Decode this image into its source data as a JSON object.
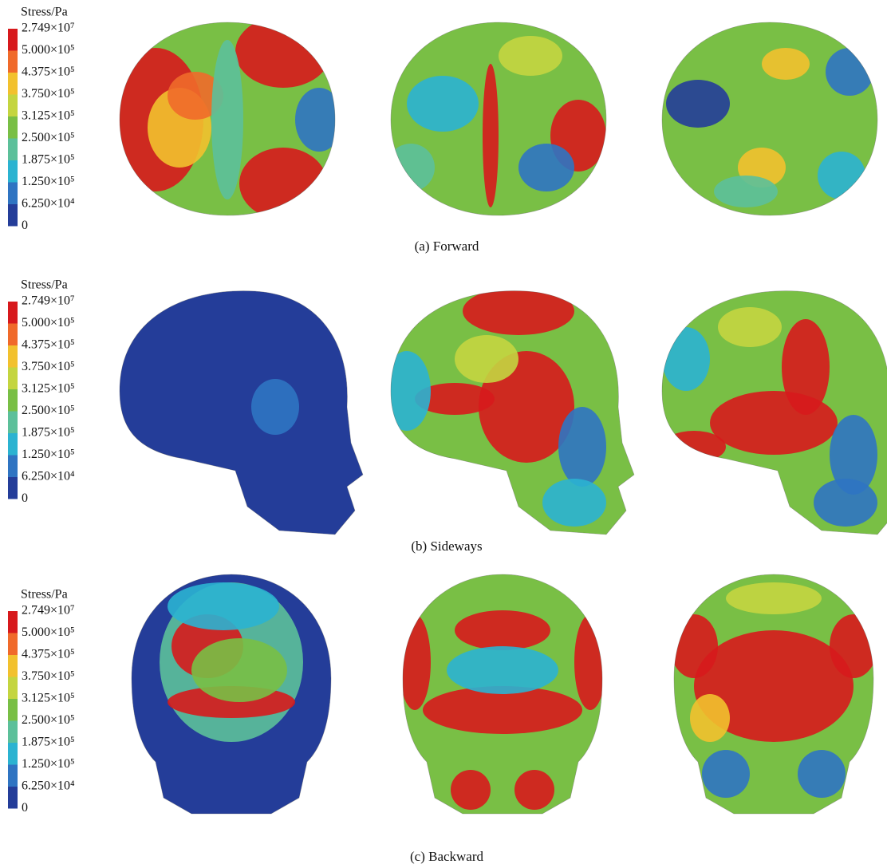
{
  "legend_colors": [
    "#d7191c",
    "#f06a2a",
    "#f2c12e",
    "#c4d540",
    "#79bf45",
    "#5cc09a",
    "#2bb3d1",
    "#2f74c2",
    "#243d99"
  ],
  "rows": [
    {
      "caption": "(a) Forward",
      "legend": {
        "title": "Stress/Pa",
        "labels": [
          "2.749×10⁷",
          "5.000×10⁵",
          "4.375×10⁵",
          "3.750×10⁵",
          "3.125×10⁵",
          "2.500×10⁵",
          "1.875×10⁵",
          "1.250×10⁵",
          "6.250×10⁴",
          "0"
        ]
      }
    },
    {
      "caption": "(b) Sideways",
      "legend": {
        "title": "Stress/Pa",
        "labels": [
          "2.749×10⁷",
          "5.000×10⁵",
          "4.375×10⁵",
          "3.750×10⁵",
          "3.125×10⁵",
          "2.500×10⁵",
          "1.875×10⁵",
          "1.250×10⁵",
          "6.250×10⁴",
          "0"
        ]
      }
    },
    {
      "caption": "(c) Backward",
      "legend": {
        "title": "Stress/Pa",
        "labels": [
          "2.749×10⁷",
          "5.000×10⁵",
          "4.375×10⁵",
          "3.750×10⁵",
          "3.125×10⁵",
          "2.500×10⁵",
          "1.875×10⁵",
          "1.250×10⁵",
          "6.250×10⁴",
          "0"
        ]
      }
    }
  ]
}
